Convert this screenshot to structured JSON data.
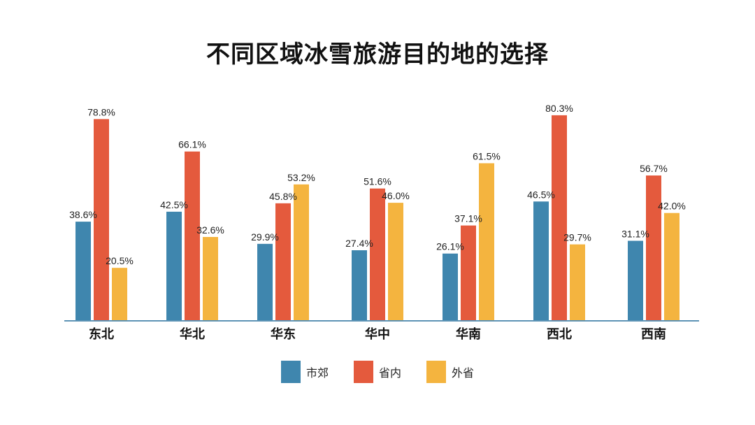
{
  "chart_data": {
    "type": "bar",
    "title": "不同区域冰雪旅游目的地的选择",
    "categories": [
      "东北",
      "华北",
      "华东",
      "华中",
      "华南",
      "西北",
      "西南"
    ],
    "series": [
      {
        "name": "市郊",
        "color": "#3f86ae",
        "values": [
          38.6,
          42.5,
          29.9,
          27.4,
          26.1,
          46.5,
          31.1
        ]
      },
      {
        "name": "省内",
        "color": "#e45a3d",
        "values": [
          78.8,
          66.1,
          45.8,
          51.6,
          37.1,
          80.3,
          56.7
        ]
      },
      {
        "name": "外省",
        "color": "#f4b43f",
        "values": [
          20.5,
          32.6,
          53.2,
          46.0,
          61.5,
          29.7,
          42.0
        ]
      }
    ],
    "value_suffix": "%",
    "ylim": [
      0,
      100
    ],
    "grid": false,
    "legend_position": "bottom",
    "xlabel": "",
    "ylabel": ""
  }
}
